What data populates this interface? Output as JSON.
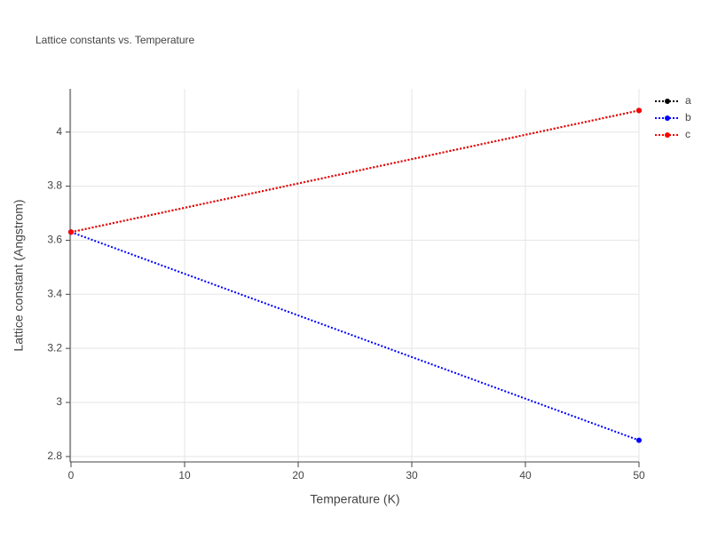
{
  "chart_data": {
    "type": "line",
    "title": "Lattice constants vs. Temperature",
    "x_label": "Temperature (K)",
    "y_label": "Lattice constant (Angstrom)",
    "x": [
      0,
      50
    ],
    "series": [
      {
        "name": "a",
        "color": "#000000",
        "values": [
          3.63,
          4.08
        ]
      },
      {
        "name": "b",
        "color": "#0000ff",
        "values": [
          3.63,
          2.86
        ]
      },
      {
        "name": "c",
        "color": "#ff0000",
        "values": [
          3.63,
          4.08
        ]
      }
    ],
    "xlim": [
      0,
      50
    ],
    "xticks": [
      0,
      10,
      20,
      30,
      40,
      50
    ],
    "ylim": [
      2.78,
      4.16
    ],
    "yticks": [
      2.8,
      3,
      3.2,
      3.4,
      3.6,
      3.8,
      4
    ],
    "grid": true,
    "legend": "right"
  }
}
